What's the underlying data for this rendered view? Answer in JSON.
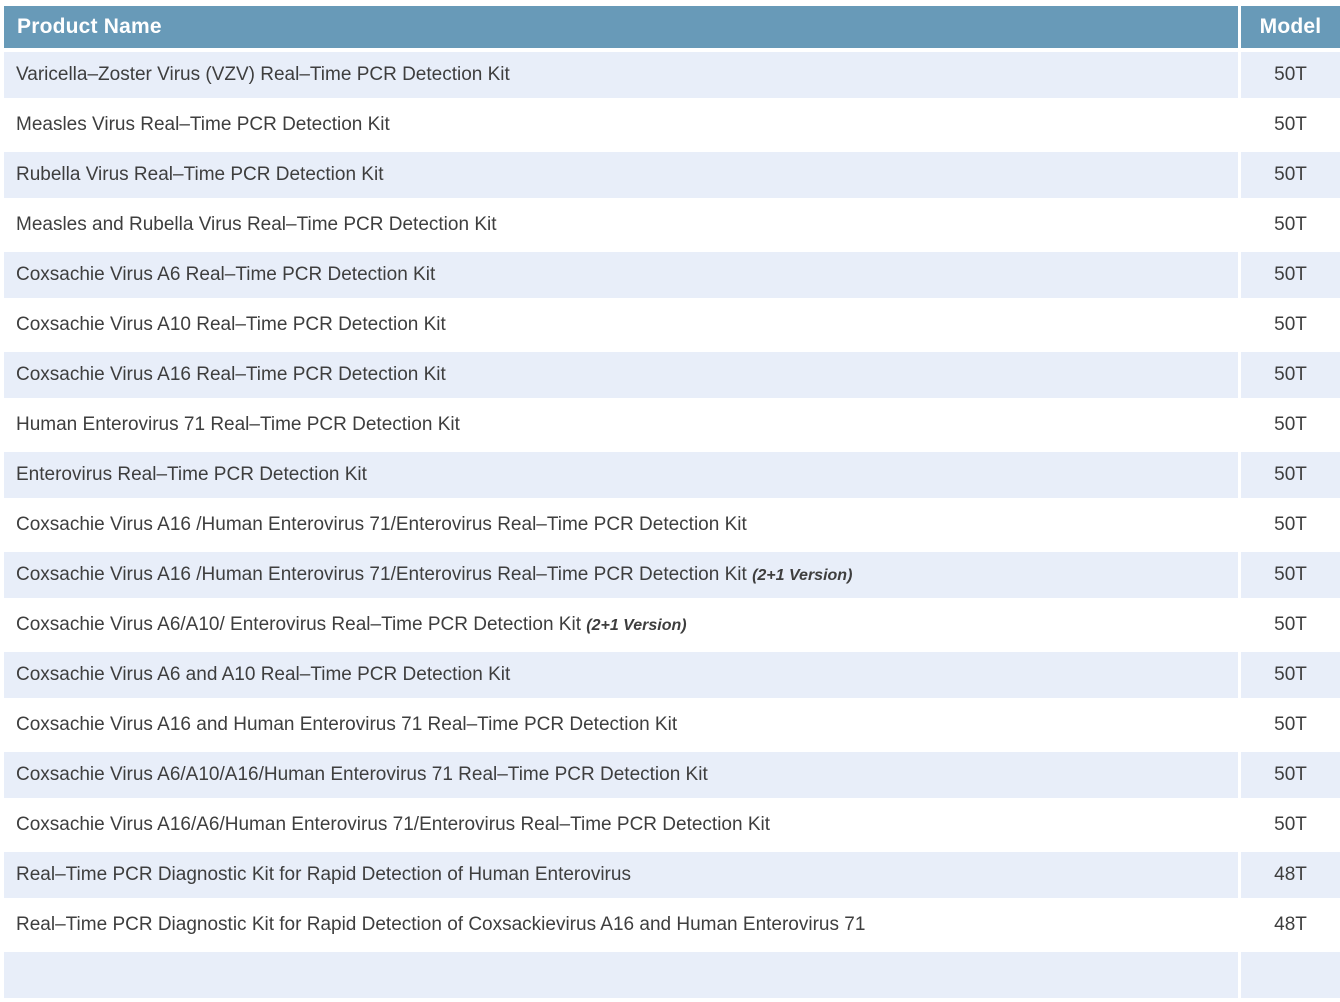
{
  "colors": {
    "header_bg": "#689ab8",
    "header_text": "#ffffff",
    "row_bg": "#ffffff",
    "row_alt_bg": "#e8eef9",
    "body_text": "#3e3e3e"
  },
  "table": {
    "header": {
      "product": "Product Name",
      "model": "Model"
    },
    "rows": [
      {
        "name": "Varicella–Zoster Virus (VZV) Real–Time PCR Detection Kit",
        "suffix": "",
        "model": "50T"
      },
      {
        "name": "Measles Virus Real–Time PCR Detection Kit",
        "suffix": "",
        "model": "50T"
      },
      {
        "name": "Rubella Virus Real–Time PCR Detection Kit",
        "suffix": "",
        "model": "50T"
      },
      {
        "name": "Measles and Rubella Virus Real–Time PCR Detection Kit",
        "suffix": "",
        "model": "50T"
      },
      {
        "name": "Coxsachie Virus A6 Real–Time PCR Detection Kit",
        "suffix": "",
        "model": "50T"
      },
      {
        "name": "Coxsachie Virus A10 Real–Time PCR Detection Kit",
        "suffix": "",
        "model": "50T"
      },
      {
        "name": "Coxsachie Virus A16 Real–Time PCR Detection Kit",
        "suffix": "",
        "model": "50T"
      },
      {
        "name": "Human Enterovirus 71 Real–Time PCR Detection Kit",
        "suffix": "",
        "model": "50T"
      },
      {
        "name": "Enterovirus Real–Time PCR Detection Kit",
        "suffix": "",
        "model": "50T"
      },
      {
        "name": "Coxsachie Virus A16 /Human Enterovirus 71/Enterovirus Real–Time PCR Detection Kit",
        "suffix": "",
        "model": "50T"
      },
      {
        "name": "Coxsachie Virus A16 /Human Enterovirus 71/Enterovirus Real–Time PCR Detection Kit",
        "suffix": "(2+1 Version)",
        "model": "50T"
      },
      {
        "name": "Coxsachie Virus A6/A10/ Enterovirus Real–Time PCR Detection Kit",
        "suffix": "(2+1 Version)",
        "model": "50T"
      },
      {
        "name": "Coxsachie Virus A6 and A10 Real–Time PCR Detection Kit",
        "suffix": "",
        "model": "50T"
      },
      {
        "name": "Coxsachie Virus A16 and Human Enterovirus 71 Real–Time PCR Detection Kit",
        "suffix": "",
        "model": "50T"
      },
      {
        "name": "Coxsachie Virus A6/A10/A16/Human Enterovirus 71 Real–Time PCR Detection Kit",
        "suffix": "",
        "model": "50T"
      },
      {
        "name": "Coxsachie Virus A16/A6/Human Enterovirus 71/Enterovirus Real–Time PCR Detection Kit",
        "suffix": "",
        "model": "50T"
      },
      {
        "name": "Real–Time PCR Diagnostic Kit for Rapid Detection of Human Enterovirus",
        "suffix": "",
        "model": "48T"
      },
      {
        "name": "Real–Time PCR Diagnostic Kit for Rapid Detection of Coxsackievirus A16 and Human Enterovirus 71",
        "suffix": "",
        "model": "48T"
      }
    ]
  }
}
